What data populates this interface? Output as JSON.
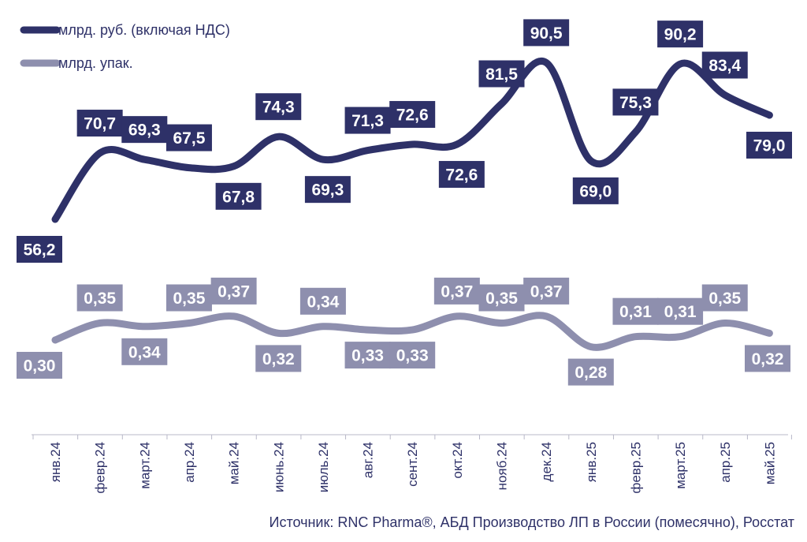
{
  "chart_data": {
    "type": "line",
    "categories": [
      "янв.24",
      "февр.24",
      "март.24",
      "апр.24",
      "май.24",
      "июнь.24",
      "июль.24",
      "авг.24",
      "сент.24",
      "окт.24",
      "нояб.24",
      "дек.24",
      "янв.25",
      "февр.25",
      "март.25",
      "апр.25",
      "май.25"
    ],
    "series": [
      {
        "name": "млрд. руб. (включая НДС)",
        "color": "#2e3168",
        "values": [
          56.2,
          70.7,
          69.3,
          67.5,
          67.8,
          74.3,
          69.3,
          71.3,
          72.6,
          72.6,
          81.5,
          90.5,
          69.0,
          75.3,
          90.2,
          83.4,
          79.0
        ],
        "labels": [
          "56,2",
          "70,7",
          "69,3",
          "67,5",
          "67,8",
          "74,3",
          "69,3",
          "71,3",
          "72,6",
          "72,6",
          "81,5",
          "90,5",
          "69,0",
          "75,3",
          "90,2",
          "83,4",
          "79,0"
        ]
      },
      {
        "name": "млрд. упак.",
        "color": "#8e8fae",
        "values": [
          0.3,
          0.35,
          0.34,
          0.35,
          0.37,
          0.32,
          0.34,
          0.33,
          0.33,
          0.37,
          0.35,
          0.37,
          0.28,
          0.31,
          0.31,
          0.35,
          0.32
        ],
        "labels": [
          "0,30",
          "0,35",
          "0,34",
          "0,35",
          "0,37",
          "0,32",
          "0,34",
          "0,33",
          "0,33",
          "0,37",
          "0,35",
          "0,37",
          "0,28",
          "0,31",
          "0,31",
          "0,35",
          "0,32"
        ]
      }
    ],
    "legend_position": "top-left",
    "grid": false,
    "source": "Источник: RNC Pharma®, АБД Производство ЛП в России (помесячно), Росстат"
  }
}
